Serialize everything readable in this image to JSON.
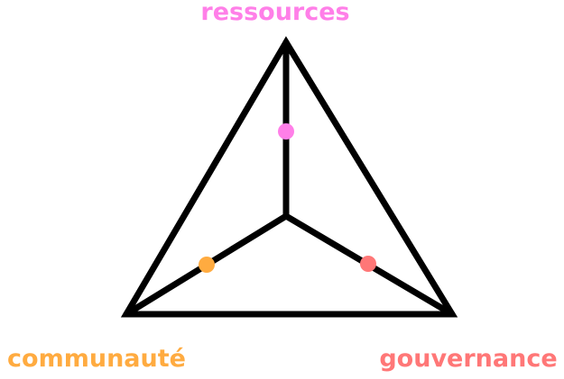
{
  "diagram": {
    "type": "triangle-with-center-spokes",
    "nodes": {
      "top": {
        "label": "ressources",
        "color": "#ff7fe8"
      },
      "left": {
        "label": "communauté",
        "color": "#ffab40"
      },
      "right": {
        "label": "gouvernance",
        "color": "#ff7777"
      }
    },
    "line_color": "#000000"
  }
}
